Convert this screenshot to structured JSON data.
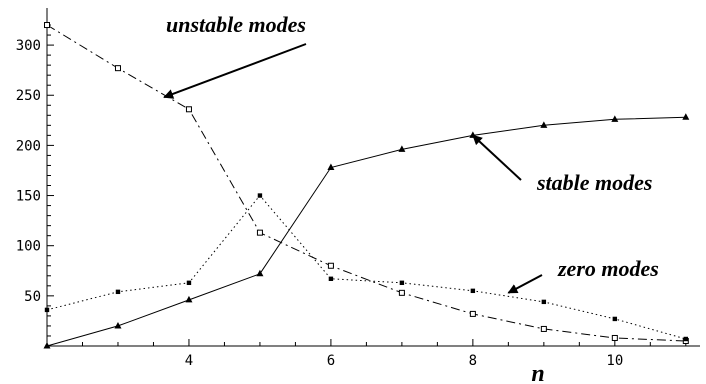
{
  "chart_data": {
    "type": "line",
    "xlabel": "n",
    "ylabel": "",
    "xlim": [
      2,
      11.2
    ],
    "ylim": [
      0,
      330
    ],
    "x_ticks": [
      4,
      6,
      8,
      10
    ],
    "y_ticks": [
      50,
      100,
      150,
      200,
      250,
      300
    ],
    "x_tick_labels": [
      "4",
      "6",
      "8",
      "10"
    ],
    "y_tick_labels": [
      "50",
      "100",
      "150",
      "200",
      "250",
      "300"
    ],
    "grid": false,
    "series": [
      {
        "name": "unstable modes",
        "line_style": "dash-dot",
        "marker": "open-square",
        "x": [
          2,
          3,
          4,
          5,
          6,
          7,
          8,
          9,
          10,
          11
        ],
        "y": [
          320,
          277,
          236,
          113,
          80,
          53,
          32,
          17,
          8,
          5
        ]
      },
      {
        "name": "stable modes",
        "line_style": "solid",
        "marker": "filled-triangle",
        "x": [
          2,
          3,
          4,
          5,
          6,
          7,
          8,
          9,
          10,
          11
        ],
        "y": [
          0,
          20,
          46,
          72,
          178,
          196,
          210,
          220,
          226,
          228
        ]
      },
      {
        "name": "zero modes",
        "line_style": "dotted",
        "marker": "filled-square",
        "x": [
          2,
          3,
          4,
          5,
          6,
          7,
          8,
          9,
          10,
          11
        ],
        "y": [
          36,
          54,
          63,
          150,
          67,
          63,
          55,
          44,
          27,
          7
        ]
      }
    ],
    "annotations": [
      {
        "text": "unstable modes",
        "target_x": 3.65,
        "target_y": 248
      },
      {
        "text": "stable modes",
        "target_x": 8.0,
        "target_y": 210
      },
      {
        "text": "zero modes",
        "target_x": 8.5,
        "target_y": 53
      }
    ]
  }
}
